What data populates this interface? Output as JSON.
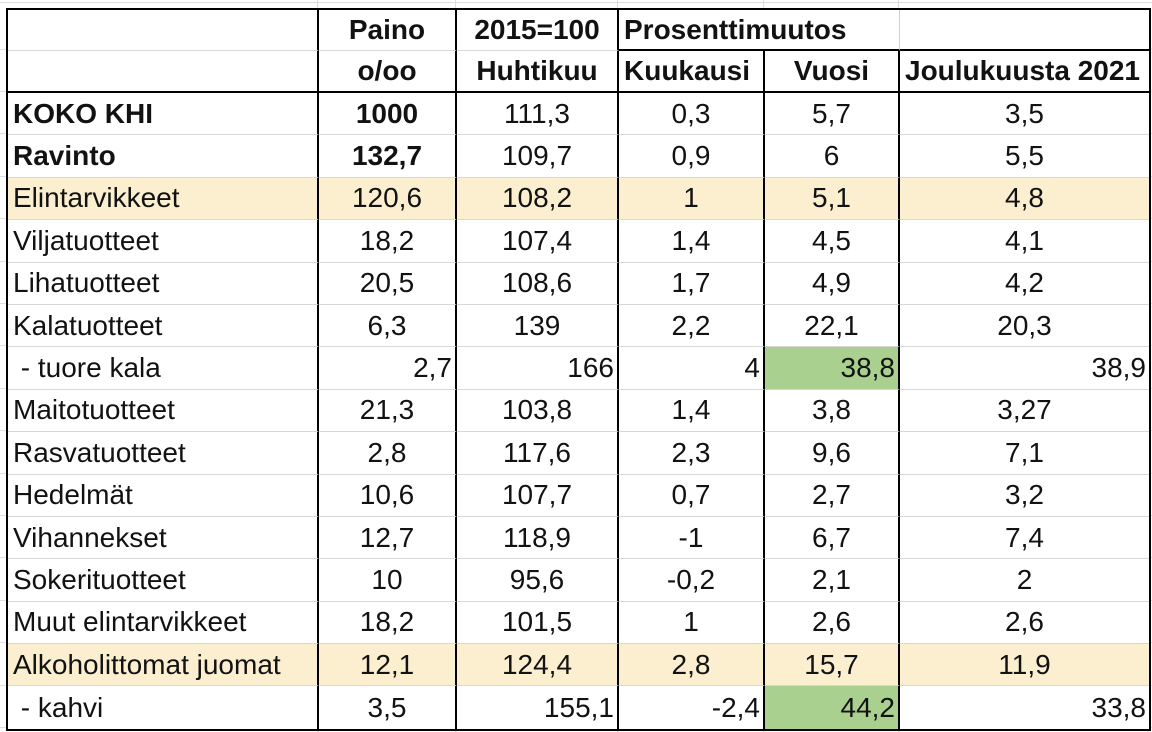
{
  "table": {
    "header_row1": {
      "label": "",
      "paino": "Paino",
      "index": "2015=100",
      "prosenttimuutos": "Prosenttimuutos",
      "last": ""
    },
    "header_row2": {
      "label": "",
      "paino": "o/oo",
      "index": "Huhtikuu",
      "kuukausi": "Kuukausi",
      "vuosi": "Vuosi",
      "joulukuusta": "Joulukuusta 2021"
    },
    "rows": [
      {
        "label": "KOKO KHI",
        "paino": "1000",
        "huhtikuu": "111,3",
        "kuukausi": "0,3",
        "vuosi": "5,7",
        "joulukuusta": "3,5",
        "style": "bold"
      },
      {
        "label": "Ravinto",
        "paino": "132,7",
        "huhtikuu": "109,7",
        "kuukausi": "0,9",
        "vuosi": "6",
        "joulukuusta": "5,5",
        "style": "bold"
      },
      {
        "label": "Elintarvikkeet",
        "paino": "120,6",
        "huhtikuu": "108,2",
        "kuukausi": "1",
        "vuosi": "5,1",
        "joulukuusta": "4,8",
        "style": "yellow"
      },
      {
        "label": "Viljatuotteet",
        "paino": "18,2",
        "huhtikuu": "107,4",
        "kuukausi": "1,4",
        "vuosi": "4,5",
        "joulukuusta": "4,1",
        "style": ""
      },
      {
        "label": "Lihatuotteet",
        "paino": "20,5",
        "huhtikuu": "108,6",
        "kuukausi": "1,7",
        "vuosi": "4,9",
        "joulukuusta": "4,2",
        "style": ""
      },
      {
        "label": "Kalatuotteet",
        "paino": "6,3",
        "huhtikuu": "139",
        "kuukausi": "2,2",
        "vuosi": "22,1",
        "joulukuusta": "20,3",
        "style": ""
      },
      {
        "label": " - tuore kala",
        "paino": "2,7",
        "huhtikuu": "166",
        "kuukausi": "4",
        "vuosi": "38,8",
        "joulukuusta": "38,9",
        "style": "",
        "num_align": "right",
        "vuosi_highlight": true
      },
      {
        "label": "Maitotuotteet",
        "paino": "21,3",
        "huhtikuu": "103,8",
        "kuukausi": "1,4",
        "vuosi": "3,8",
        "joulukuusta": "3,27",
        "style": ""
      },
      {
        "label": "Rasvatuotteet",
        "paino": "2,8",
        "huhtikuu": "117,6",
        "kuukausi": "2,3",
        "vuosi": "9,6",
        "joulukuusta": "7,1",
        "style": ""
      },
      {
        "label": "Hedelmät",
        "paino": "10,6",
        "huhtikuu": "107,7",
        "kuukausi": "0,7",
        "vuosi": "2,7",
        "joulukuusta": "3,2",
        "style": ""
      },
      {
        "label": "Vihannekset",
        "paino": "12,7",
        "huhtikuu": "118,9",
        "kuukausi": "-1",
        "vuosi": "6,7",
        "joulukuusta": "7,4",
        "style": ""
      },
      {
        "label": "Sokerituotteet",
        "paino": "10",
        "huhtikuu": "95,6",
        "kuukausi": "-0,2",
        "vuosi": "2,1",
        "joulukuusta": "2",
        "style": ""
      },
      {
        "label": "Muut elintarvikkeet",
        "paino": "18,2",
        "huhtikuu": "101,5",
        "kuukausi": "1",
        "vuosi": "2,6",
        "joulukuusta": "2,6",
        "style": ""
      },
      {
        "label": "Alkoholittomat juomat",
        "paino": "12,1",
        "huhtikuu": "124,4",
        "kuukausi": "2,8",
        "vuosi": "15,7",
        "joulukuusta": "11,9",
        "style": "yellow"
      },
      {
        "label": " - kahvi",
        "paino": "3,5",
        "huhtikuu": "155,1",
        "kuukausi": "-2,4",
        "vuosi": "44,2",
        "joulukuusta": "33,8",
        "style": "",
        "num_align": "right",
        "paino_align": "center",
        "vuosi_highlight": true
      }
    ],
    "colors": {
      "highlight_yellow": "#fbefd0",
      "highlight_green": "#a9d08e"
    }
  }
}
